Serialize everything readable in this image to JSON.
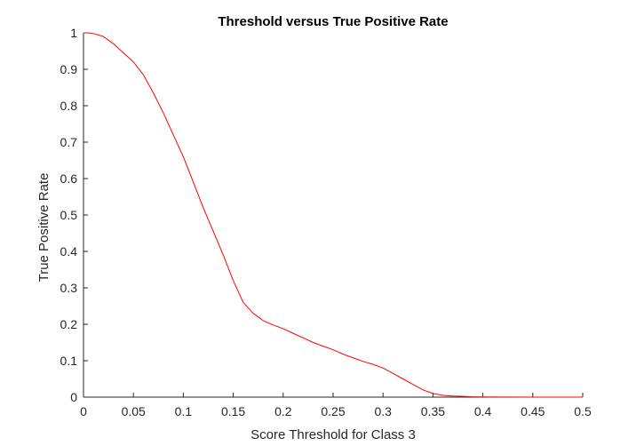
{
  "chart_data": {
    "type": "line",
    "title": "Threshold versus True Positive Rate",
    "xlabel": "Score Threshold for Class 3",
    "ylabel": "True Positive Rate",
    "xlim": [
      0,
      0.5
    ],
    "ylim": [
      0,
      1
    ],
    "xticks": [
      0,
      0.05,
      0.1,
      0.15,
      0.2,
      0.25,
      0.3,
      0.35,
      0.4,
      0.45,
      0.5
    ],
    "xtick_labels": [
      "0",
      "0.05",
      "0.1",
      "0.15",
      "0.2",
      "0.25",
      "0.3",
      "0.35",
      "0.4",
      "0.45",
      "0.5"
    ],
    "yticks": [
      0,
      0.1,
      0.2,
      0.3,
      0.4,
      0.5,
      0.6,
      0.7,
      0.8,
      0.9,
      1
    ],
    "ytick_labels": [
      "0",
      "0.1",
      "0.2",
      "0.3",
      "0.4",
      "0.5",
      "0.6",
      "0.7",
      "0.8",
      "0.9",
      "1"
    ],
    "grid": false,
    "series": [
      {
        "color": "#ff0000",
        "x": [
          0,
          0.005,
          0.01,
          0.02,
          0.03,
          0.04,
          0.05,
          0.06,
          0.07,
          0.08,
          0.09,
          0.1,
          0.11,
          0.12,
          0.13,
          0.14,
          0.15,
          0.16,
          0.17,
          0.18,
          0.19,
          0.2,
          0.21,
          0.22,
          0.23,
          0.24,
          0.25,
          0.26,
          0.27,
          0.28,
          0.29,
          0.3,
          0.31,
          0.32,
          0.33,
          0.34,
          0.35,
          0.36,
          0.37,
          0.38,
          0.39,
          0.4,
          0.42,
          0.45,
          0.48,
          0.5
        ],
        "y": [
          1.0,
          1.0,
          0.998,
          0.99,
          0.97,
          0.945,
          0.92,
          0.885,
          0.835,
          0.78,
          0.72,
          0.66,
          0.59,
          0.52,
          0.455,
          0.39,
          0.32,
          0.26,
          0.23,
          0.21,
          0.198,
          0.188,
          0.175,
          0.163,
          0.15,
          0.14,
          0.13,
          0.118,
          0.108,
          0.098,
          0.09,
          0.08,
          0.065,
          0.05,
          0.035,
          0.02,
          0.01,
          0.005,
          0.003,
          0.002,
          0.001,
          0.0005,
          0.0002,
          0.0001,
          0,
          0
        ]
      }
    ]
  }
}
